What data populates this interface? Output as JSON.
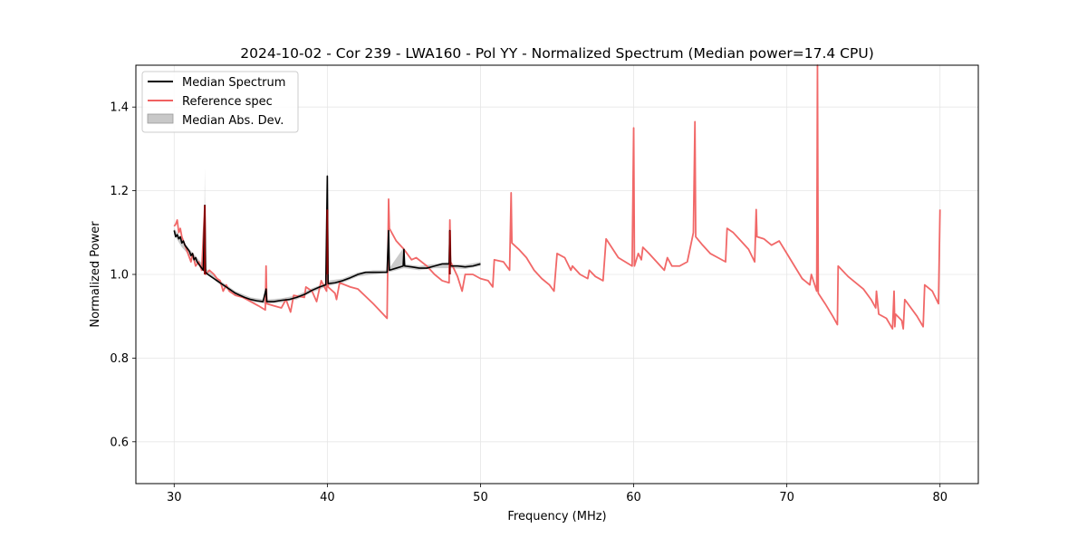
{
  "chart_data": {
    "type": "line",
    "title": "2024-10-02 - Cor 239 - LWA160 - Pol YY - Normalized Spectrum (Median power=17.4 CPU)",
    "xlabel": "Frequency (MHz)",
    "ylabel": "Normalized Power",
    "xlim": [
      27.5,
      82.5
    ],
    "ylim": [
      0.5,
      1.5
    ],
    "x_ticks": [
      30,
      40,
      50,
      60,
      70,
      80
    ],
    "y_ticks": [
      0.6,
      0.8,
      1.0,
      1.2,
      1.4
    ],
    "x_tick_labels": [
      "30",
      "40",
      "50",
      "60",
      "70",
      "80"
    ],
    "y_tick_labels": [
      "0.6",
      "0.8",
      "1.0",
      "1.2",
      "1.4"
    ],
    "grid": true,
    "legend_position": "top-left",
    "legend": [
      {
        "label": "Median Spectrum",
        "kind": "line",
        "color": "#000000"
      },
      {
        "label": "Reference spec",
        "kind": "line",
        "color": "#f06060"
      },
      {
        "label": "Median Abs. Dev.",
        "kind": "patch",
        "color": "#c8c8c8"
      }
    ],
    "series": [
      {
        "name": "Median Spectrum",
        "color": "#000000",
        "points": [
          [
            30.0,
            1.105
          ],
          [
            30.1,
            1.09
          ],
          [
            30.2,
            1.095
          ],
          [
            30.3,
            1.085
          ],
          [
            30.4,
            1.09
          ],
          [
            30.5,
            1.075
          ],
          [
            30.6,
            1.08
          ],
          [
            30.7,
            1.07
          ],
          [
            30.8,
            1.065
          ],
          [
            30.9,
            1.06
          ],
          [
            31.0,
            1.055
          ],
          [
            31.1,
            1.045
          ],
          [
            31.2,
            1.05
          ],
          [
            31.3,
            1.035
          ],
          [
            31.4,
            1.04
          ],
          [
            31.5,
            1.03
          ],
          [
            31.6,
            1.025
          ],
          [
            31.7,
            1.02
          ],
          [
            31.8,
            1.015
          ],
          [
            31.9,
            1.01
          ],
          [
            32.0,
            1.165
          ],
          [
            32.05,
            1.005
          ],
          [
            32.2,
            1.0
          ],
          [
            32.4,
            0.995
          ],
          [
            32.6,
            0.99
          ],
          [
            32.8,
            0.985
          ],
          [
            33.0,
            0.98
          ],
          [
            33.2,
            0.975
          ],
          [
            33.4,
            0.97
          ],
          [
            33.6,
            0.965
          ],
          [
            33.8,
            0.96
          ],
          [
            34.0,
            0.955
          ],
          [
            34.3,
            0.95
          ],
          [
            34.6,
            0.945
          ],
          [
            35.0,
            0.94
          ],
          [
            35.4,
            0.937
          ],
          [
            35.8,
            0.935
          ],
          [
            36.0,
            0.965
          ],
          [
            36.05,
            0.935
          ],
          [
            36.5,
            0.935
          ],
          [
            37.0,
            0.938
          ],
          [
            37.5,
            0.94
          ],
          [
            38.0,
            0.945
          ],
          [
            38.5,
            0.952
          ],
          [
            39.0,
            0.962
          ],
          [
            39.5,
            0.97
          ],
          [
            39.9,
            0.975
          ],
          [
            40.0,
            1.235
          ],
          [
            40.05,
            0.978
          ],
          [
            40.5,
            0.98
          ],
          [
            41.0,
            0.985
          ],
          [
            41.5,
            0.992
          ],
          [
            42.0,
            1.0
          ],
          [
            42.5,
            1.005
          ],
          [
            43.0,
            1.005
          ],
          [
            43.5,
            1.005
          ],
          [
            43.9,
            1.005
          ],
          [
            44.0,
            1.105
          ],
          [
            44.05,
            1.01
          ],
          [
            44.5,
            1.015
          ],
          [
            44.95,
            1.02
          ],
          [
            45.0,
            1.06
          ],
          [
            45.05,
            1.02
          ],
          [
            45.5,
            1.018
          ],
          [
            46.0,
            1.015
          ],
          [
            46.5,
            1.015
          ],
          [
            47.0,
            1.02
          ],
          [
            47.5,
            1.025
          ],
          [
            47.95,
            1.025
          ],
          [
            48.0,
            1.105
          ],
          [
            48.05,
            1.02
          ],
          [
            48.5,
            1.02
          ],
          [
            49.0,
            1.018
          ],
          [
            49.5,
            1.02
          ],
          [
            50.0,
            1.025
          ]
        ]
      },
      {
        "name": "Reference spec",
        "color": "#f06060",
        "points": [
          [
            30.0,
            1.115
          ],
          [
            30.1,
            1.12
          ],
          [
            30.2,
            1.13
          ],
          [
            30.3,
            1.1
          ],
          [
            30.4,
            1.11
          ],
          [
            30.5,
            1.09
          ],
          [
            30.6,
            1.08
          ],
          [
            30.8,
            1.06
          ],
          [
            31.0,
            1.04
          ],
          [
            31.1,
            1.03
          ],
          [
            31.2,
            1.05
          ],
          [
            31.4,
            1.02
          ],
          [
            31.6,
            1.03
          ],
          [
            31.8,
            1.01
          ],
          [
            32.0,
            1.165
          ],
          [
            32.05,
            1.0
          ],
          [
            32.3,
            1.01
          ],
          [
            32.6,
            1.0
          ],
          [
            32.8,
            0.99
          ],
          [
            33.0,
            0.985
          ],
          [
            33.2,
            0.96
          ],
          [
            33.4,
            0.975
          ],
          [
            33.6,
            0.96
          ],
          [
            34.0,
            0.95
          ],
          [
            34.5,
            0.945
          ],
          [
            35.0,
            0.935
          ],
          [
            35.5,
            0.925
          ],
          [
            35.95,
            0.915
          ],
          [
            36.0,
            1.02
          ],
          [
            36.05,
            0.93
          ],
          [
            36.5,
            0.925
          ],
          [
            37.0,
            0.92
          ],
          [
            37.3,
            0.94
          ],
          [
            37.6,
            0.91
          ],
          [
            37.8,
            0.95
          ],
          [
            38.5,
            0.945
          ],
          [
            38.6,
            0.97
          ],
          [
            39.0,
            0.96
          ],
          [
            39.3,
            0.935
          ],
          [
            39.6,
            0.985
          ],
          [
            39.95,
            0.96
          ],
          [
            40.0,
            1.155
          ],
          [
            40.05,
            0.97
          ],
          [
            40.5,
            0.955
          ],
          [
            40.6,
            0.94
          ],
          [
            40.8,
            0.98
          ],
          [
            41.5,
            0.97
          ],
          [
            42.0,
            0.965
          ],
          [
            43.0,
            0.93
          ],
          [
            43.9,
            0.895
          ],
          [
            44.0,
            1.18
          ],
          [
            44.05,
            1.11
          ],
          [
            44.5,
            1.08
          ],
          [
            45.0,
            1.06
          ],
          [
            45.5,
            1.035
          ],
          [
            45.8,
            1.04
          ],
          [
            46.5,
            1.02
          ],
          [
            47.0,
            1.0
          ],
          [
            47.5,
            0.985
          ],
          [
            47.95,
            0.98
          ],
          [
            48.0,
            1.13
          ],
          [
            48.05,
            1.03
          ],
          [
            48.5,
            0.995
          ],
          [
            48.8,
            0.96
          ],
          [
            49.0,
            1.0
          ],
          [
            49.5,
            1.0
          ],
          [
            50.0,
            0.99
          ],
          [
            50.5,
            0.985
          ],
          [
            50.8,
            0.97
          ],
          [
            50.9,
            1.035
          ],
          [
            51.5,
            1.03
          ],
          [
            51.9,
            1.01
          ],
          [
            52.0,
            1.195
          ],
          [
            52.05,
            1.075
          ],
          [
            52.5,
            1.06
          ],
          [
            53.0,
            1.04
          ],
          [
            53.5,
            1.01
          ],
          [
            54.0,
            0.99
          ],
          [
            54.5,
            0.975
          ],
          [
            54.8,
            0.96
          ],
          [
            55.0,
            1.05
          ],
          [
            55.5,
            1.04
          ],
          [
            55.9,
            1.01
          ],
          [
            56.0,
            1.02
          ],
          [
            56.5,
            1.0
          ],
          [
            57.0,
            0.99
          ],
          [
            57.1,
            1.01
          ],
          [
            57.5,
            0.995
          ],
          [
            58.0,
            0.985
          ],
          [
            58.2,
            1.085
          ],
          [
            59.0,
            1.04
          ],
          [
            59.9,
            1.02
          ],
          [
            60.0,
            1.35
          ],
          [
            60.05,
            1.02
          ],
          [
            60.3,
            1.05
          ],
          [
            60.5,
            1.035
          ],
          [
            60.6,
            1.065
          ],
          [
            61.0,
            1.05
          ],
          [
            62.0,
            1.01
          ],
          [
            62.2,
            1.04
          ],
          [
            62.5,
            1.02
          ],
          [
            63.0,
            1.02
          ],
          [
            63.5,
            1.03
          ],
          [
            63.9,
            1.1
          ],
          [
            64.0,
            1.365
          ],
          [
            64.05,
            1.09
          ],
          [
            64.5,
            1.07
          ],
          [
            65.0,
            1.05
          ],
          [
            65.5,
            1.04
          ],
          [
            66.0,
            1.03
          ],
          [
            66.1,
            1.11
          ],
          [
            66.5,
            1.1
          ],
          [
            67.0,
            1.08
          ],
          [
            67.5,
            1.06
          ],
          [
            67.9,
            1.03
          ],
          [
            68.0,
            1.155
          ],
          [
            68.05,
            1.09
          ],
          [
            68.5,
            1.085
          ],
          [
            69.0,
            1.07
          ],
          [
            69.5,
            1.08
          ],
          [
            70.0,
            1.05
          ],
          [
            70.5,
            1.02
          ],
          [
            71.0,
            0.99
          ],
          [
            71.5,
            0.975
          ],
          [
            71.6,
            1.0
          ],
          [
            71.95,
            0.96
          ],
          [
            72.0,
            1.5
          ],
          [
            72.05,
            0.955
          ],
          [
            72.5,
            0.93
          ],
          [
            73.0,
            0.9
          ],
          [
            73.3,
            0.88
          ],
          [
            73.35,
            1.02
          ],
          [
            74.0,
            0.995
          ],
          [
            75.0,
            0.965
          ],
          [
            75.5,
            0.94
          ],
          [
            75.8,
            0.92
          ],
          [
            75.85,
            0.96
          ],
          [
            76.0,
            0.905
          ],
          [
            76.5,
            0.895
          ],
          [
            76.9,
            0.87
          ],
          [
            77.0,
            0.96
          ],
          [
            77.05,
            0.875
          ],
          [
            77.1,
            0.905
          ],
          [
            77.5,
            0.89
          ],
          [
            77.6,
            0.87
          ],
          [
            77.7,
            0.94
          ],
          [
            78.0,
            0.925
          ],
          [
            78.5,
            0.9
          ],
          [
            78.9,
            0.875
          ],
          [
            79.0,
            0.975
          ],
          [
            79.5,
            0.96
          ],
          [
            79.9,
            0.93
          ],
          [
            80.0,
            1.155
          ]
        ]
      }
    ],
    "band": {
      "name": "Median Abs. Dev.",
      "color": "#c8c8c8",
      "upper_points": [
        [
          30.0,
          1.11
        ],
        [
          30.5,
          1.085
        ],
        [
          31.0,
          1.06
        ],
        [
          31.5,
          1.04
        ],
        [
          31.95,
          1.02
        ],
        [
          32.0,
          1.255
        ],
        [
          32.05,
          1.015
        ],
        [
          33.0,
          0.985
        ],
        [
          34.0,
          0.96
        ],
        [
          35.0,
          0.945
        ],
        [
          35.95,
          0.94
        ],
        [
          36.0,
          0.97
        ],
        [
          36.05,
          0.94
        ],
        [
          37.0,
          0.943
        ],
        [
          38.0,
          0.95
        ],
        [
          39.0,
          0.967
        ],
        [
          39.95,
          0.98
        ],
        [
          40.0,
          1.285
        ],
        [
          40.05,
          0.985
        ],
        [
          41.0,
          0.99
        ],
        [
          42.0,
          1.005
        ],
        [
          43.0,
          1.01
        ],
        [
          43.95,
          1.01
        ],
        [
          44.0,
          1.11
        ],
        [
          44.05,
          1.015
        ],
        [
          45.0,
          1.065
        ],
        [
          45.05,
          1.025
        ],
        [
          46.0,
          1.02
        ],
        [
          47.0,
          1.025
        ],
        [
          47.95,
          1.03
        ],
        [
          48.0,
          1.11
        ],
        [
          48.05,
          1.025
        ],
        [
          49.0,
          1.023
        ],
        [
          50.0,
          1.03
        ]
      ],
      "lower_points": [
        [
          30.0,
          1.095
        ],
        [
          30.5,
          1.065
        ],
        [
          31.0,
          1.045
        ],
        [
          31.5,
          1.025
        ],
        [
          31.95,
          1.005
        ],
        [
          32.0,
          1.005
        ],
        [
          33.0,
          0.975
        ],
        [
          34.0,
          0.95
        ],
        [
          35.0,
          0.935
        ],
        [
          36.0,
          0.93
        ],
        [
          37.0,
          0.933
        ],
        [
          38.0,
          0.94
        ],
        [
          39.0,
          0.957
        ],
        [
          40.0,
          0.972
        ],
        [
          41.0,
          0.98
        ],
        [
          42.0,
          0.995
        ],
        [
          43.0,
          1.0
        ],
        [
          44.0,
          1.005
        ],
        [
          45.0,
          1.015
        ],
        [
          46.0,
          1.01
        ],
        [
          47.0,
          1.015
        ],
        [
          48.0,
          1.015
        ],
        [
          49.0,
          1.013
        ],
        [
          50.0,
          1.02
        ]
      ]
    }
  }
}
